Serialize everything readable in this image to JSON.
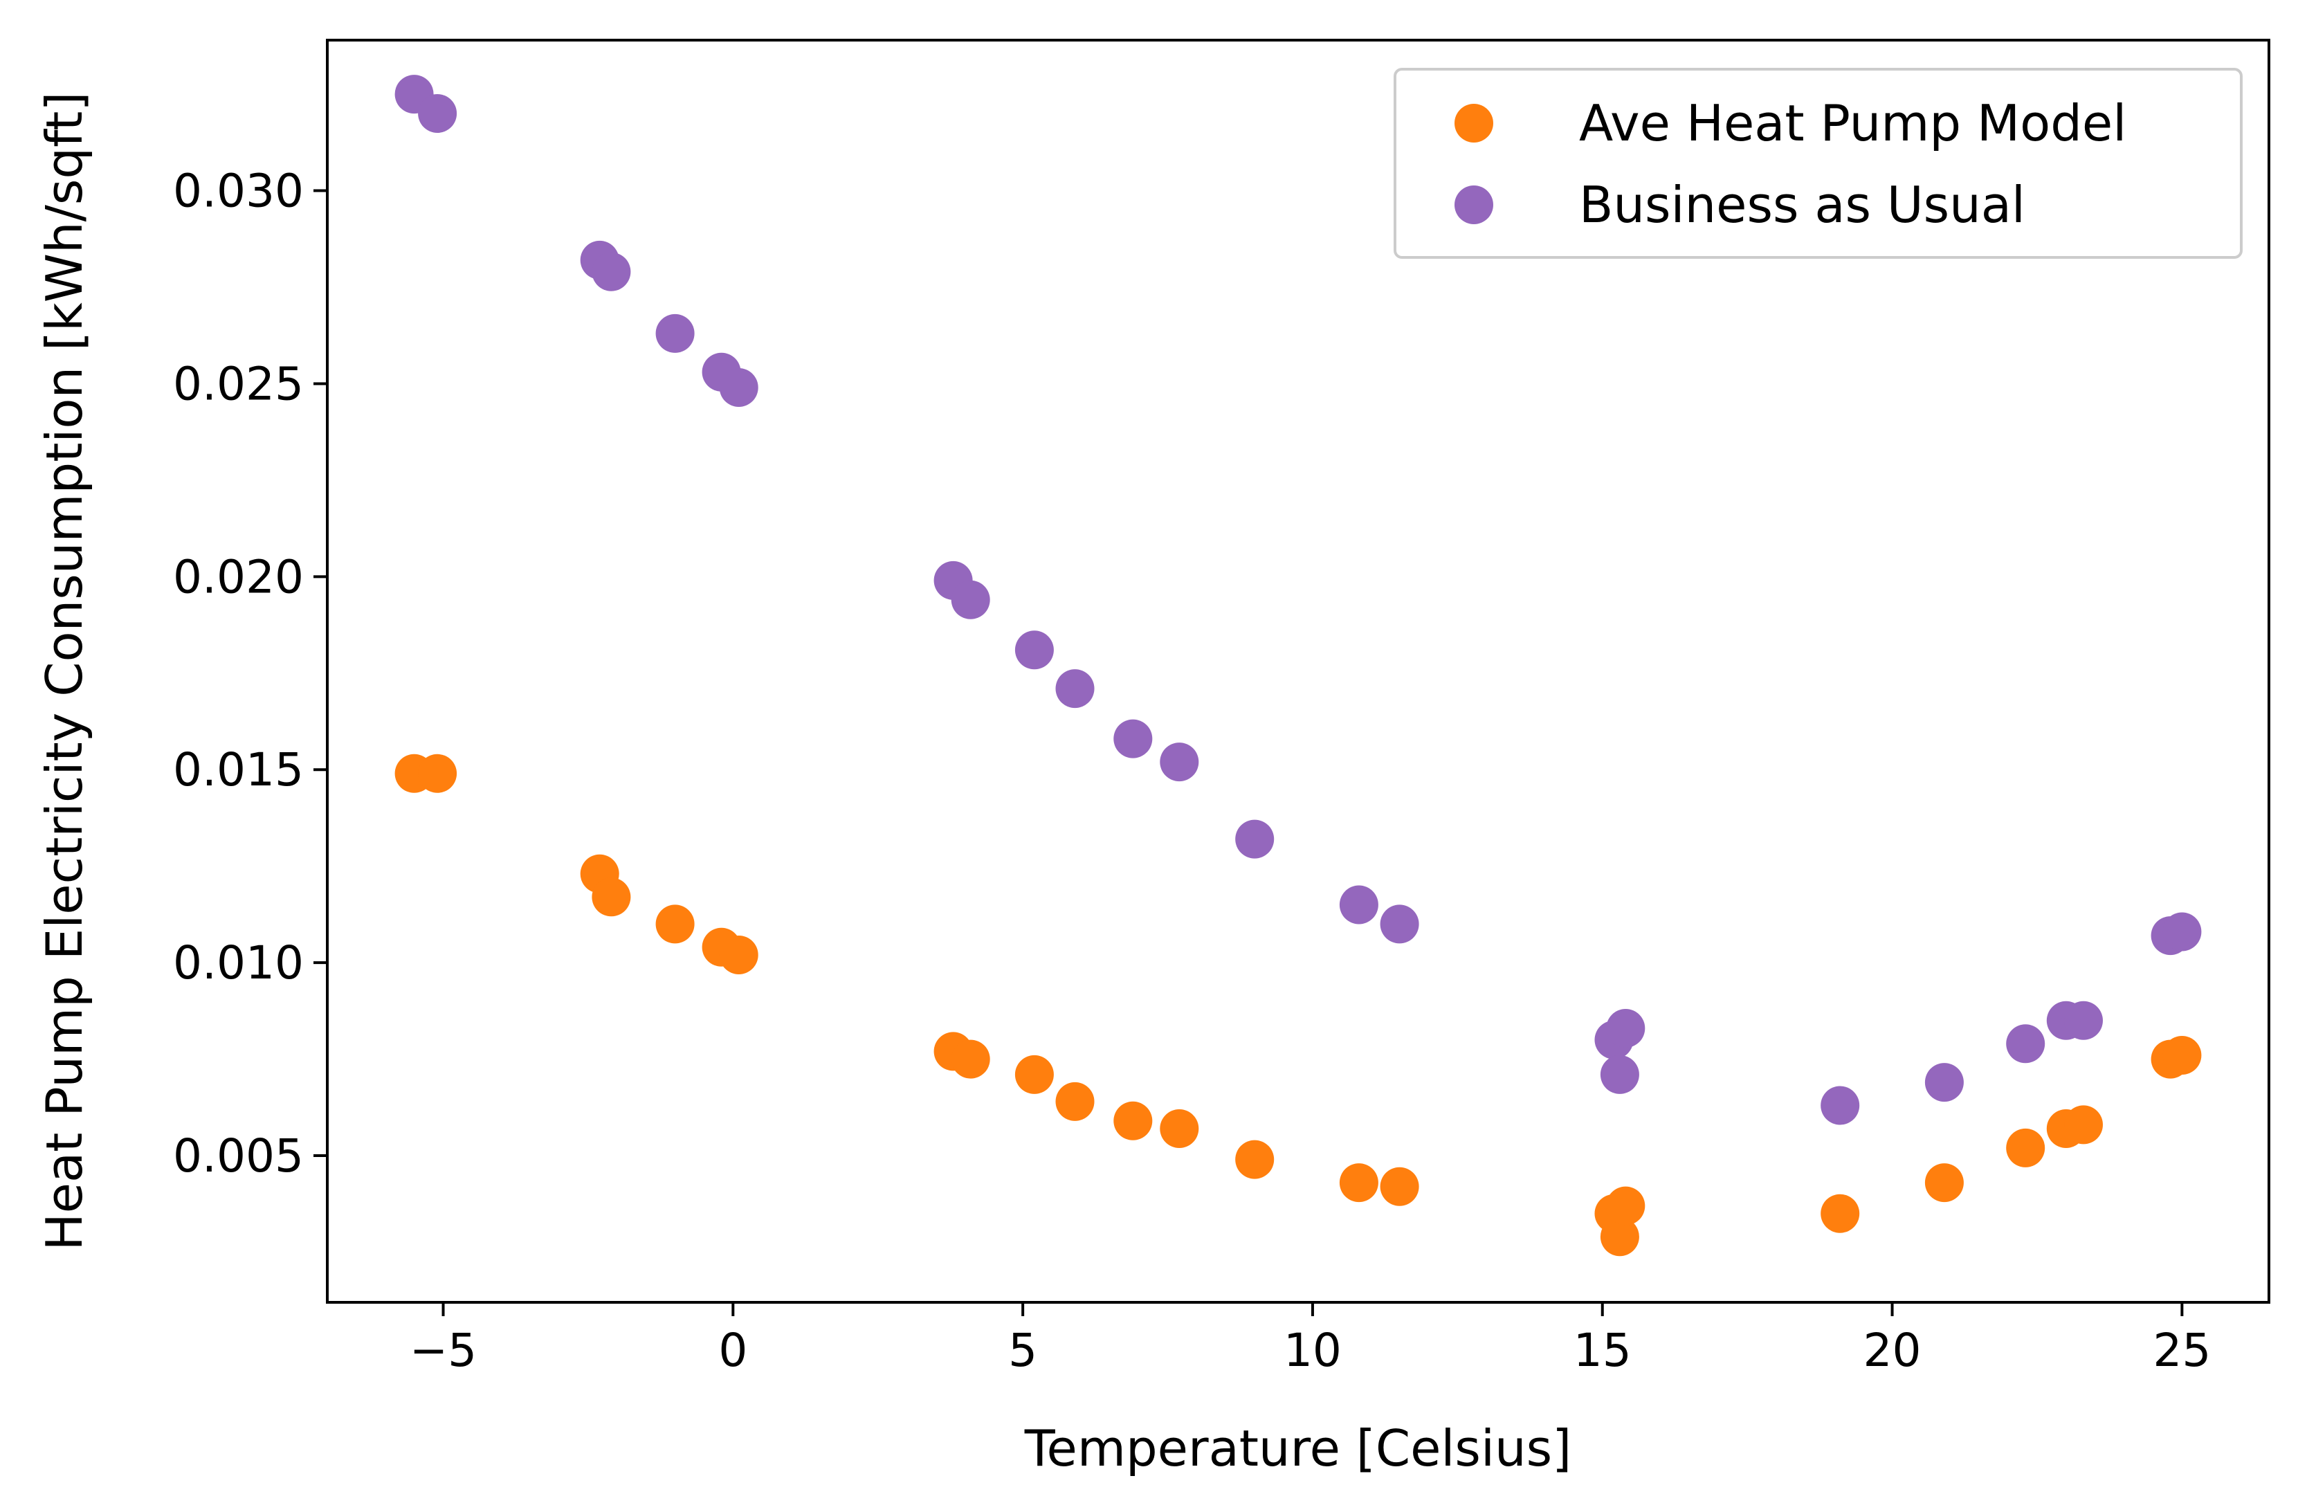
{
  "chart_data": {
    "type": "scatter",
    "title": "",
    "xlabel": "Temperature [Celsius]",
    "ylabel": "Heat Pump Electricity Consumption [kWh/sqft]",
    "xlim": [
      -7,
      26.5
    ],
    "ylim": [
      0.0012,
      0.0339
    ],
    "xticks": [
      -5,
      0,
      5,
      10,
      15,
      20,
      25
    ],
    "xtick_labels": [
      "−5",
      "0",
      "5",
      "10",
      "15",
      "20",
      "25"
    ],
    "yticks": [
      0.005,
      0.01,
      0.015,
      0.02,
      0.025,
      0.03
    ],
    "ytick_labels": [
      "0.005",
      "0.010",
      "0.015",
      "0.020",
      "0.025",
      "0.030"
    ],
    "grid": false,
    "legend_position": "top-right",
    "series": [
      {
        "name": "Ave Heat Pump Model",
        "color": "#ff7f0e",
        "points": [
          [
            -5.5,
            0.0149
          ],
          [
            -5.1,
            0.0149
          ],
          [
            -2.3,
            0.0123
          ],
          [
            -2.1,
            0.0117
          ],
          [
            -1.0,
            0.011
          ],
          [
            -0.2,
            0.0104
          ],
          [
            0.1,
            0.0102
          ],
          [
            3.8,
            0.0077
          ],
          [
            4.1,
            0.0075
          ],
          [
            5.2,
            0.0071
          ],
          [
            5.9,
            0.0064
          ],
          [
            6.9,
            0.0059
          ],
          [
            7.7,
            0.0057
          ],
          [
            9.0,
            0.0049
          ],
          [
            10.8,
            0.0043
          ],
          [
            11.5,
            0.0042
          ],
          [
            15.2,
            0.0035
          ],
          [
            15.3,
            0.0029
          ],
          [
            15.4,
            0.0037
          ],
          [
            19.1,
            0.0035
          ],
          [
            20.9,
            0.0043
          ],
          [
            22.3,
            0.0052
          ],
          [
            23.0,
            0.0057
          ],
          [
            23.3,
            0.0058
          ],
          [
            24.8,
            0.0075
          ],
          [
            25.0,
            0.0076
          ]
        ]
      },
      {
        "name": "Business as Usual",
        "color": "#9467bd",
        "points": [
          [
            -5.5,
            0.0325
          ],
          [
            -5.1,
            0.032
          ],
          [
            -2.3,
            0.0282
          ],
          [
            -2.1,
            0.0279
          ],
          [
            -1.0,
            0.0263
          ],
          [
            -0.2,
            0.0253
          ],
          [
            0.1,
            0.0249
          ],
          [
            3.8,
            0.0199
          ],
          [
            4.1,
            0.0194
          ],
          [
            5.2,
            0.0181
          ],
          [
            5.9,
            0.0171
          ],
          [
            6.9,
            0.0158
          ],
          [
            7.7,
            0.0152
          ],
          [
            9.0,
            0.0132
          ],
          [
            10.8,
            0.0115
          ],
          [
            11.5,
            0.011
          ],
          [
            15.2,
            0.008
          ],
          [
            15.3,
            0.0071
          ],
          [
            15.4,
            0.0083
          ],
          [
            19.1,
            0.0063
          ],
          [
            20.9,
            0.0069
          ],
          [
            22.3,
            0.0079
          ],
          [
            23.0,
            0.0085
          ],
          [
            23.3,
            0.0085
          ],
          [
            24.8,
            0.0107
          ],
          [
            25.0,
            0.0108
          ]
        ]
      }
    ]
  }
}
